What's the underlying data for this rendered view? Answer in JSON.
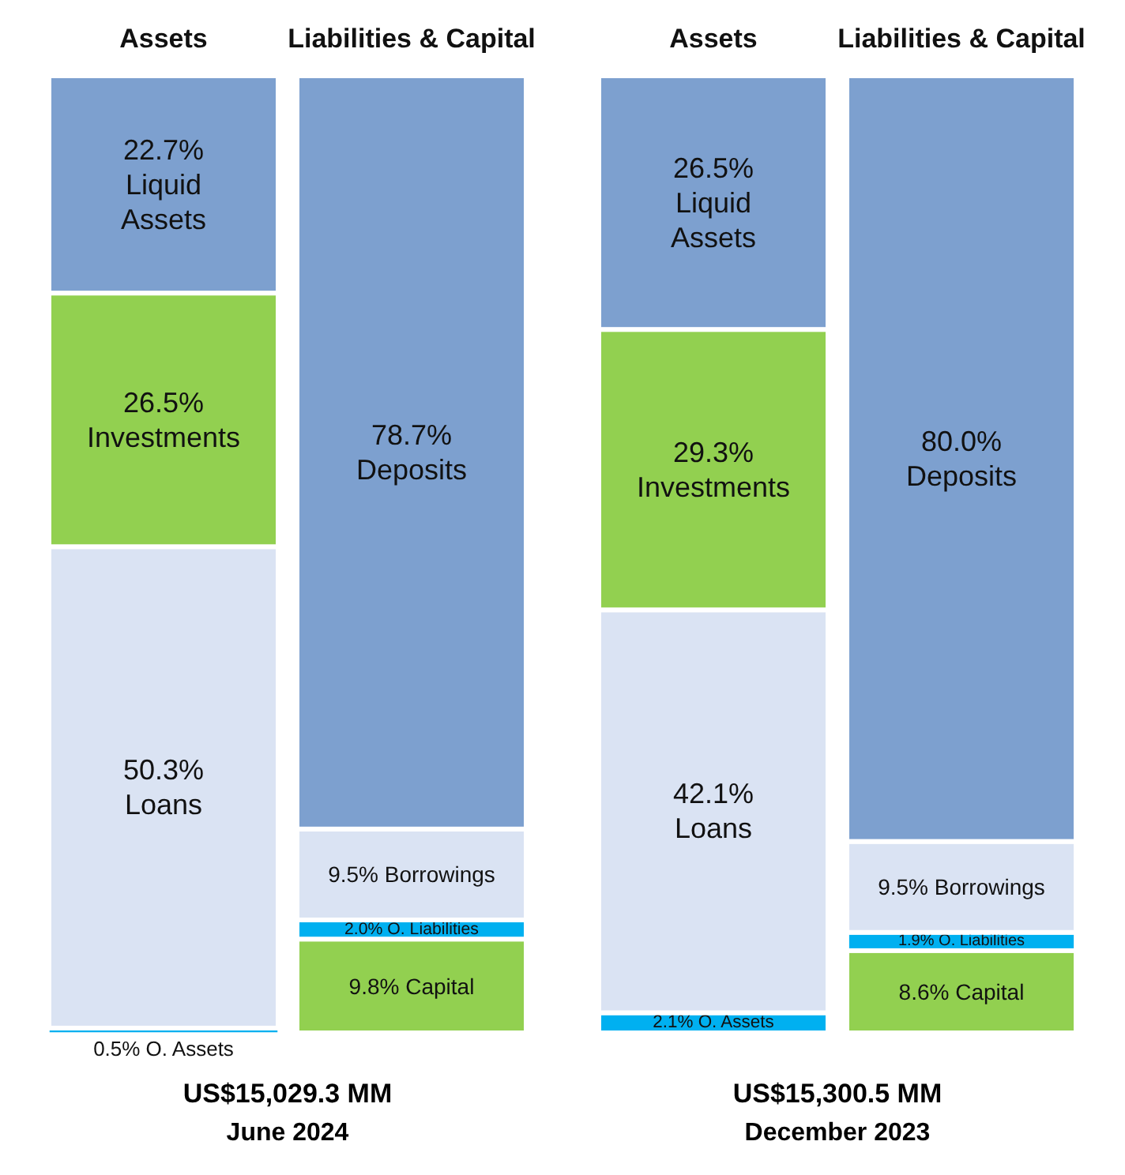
{
  "chart_data": [
    {
      "type": "bar",
      "stacked": true,
      "title": "US$15,029.3 MM",
      "subtitle": "June 2024",
      "categories": [
        "Assets",
        "Liabilities & Capital"
      ],
      "series": [
        {
          "name": "O. Assets",
          "color": "#00b0f0",
          "values": [
            0.5,
            null
          ],
          "value_labels": [
            "0.5%",
            null
          ]
        },
        {
          "name": "Loans",
          "color": "#dae3f3",
          "values": [
            50.3,
            null
          ],
          "value_labels": [
            "50.3%",
            null
          ]
        },
        {
          "name": "Investments",
          "color": "#92d050",
          "values": [
            26.5,
            null
          ],
          "value_labels": [
            "26.5%",
            null
          ]
        },
        {
          "name": "Liquid Assets",
          "color": "#7da0cf",
          "values": [
            22.7,
            null
          ],
          "value_labels": [
            "22.7%",
            null
          ]
        },
        {
          "name": "Capital",
          "color": "#92d050",
          "values": [
            null,
            9.8
          ],
          "value_labels": [
            null,
            "9.8%"
          ]
        },
        {
          "name": "O. Liabilities",
          "color": "#00b0f0",
          "values": [
            null,
            2.0
          ],
          "value_labels": [
            null,
            "2.0%"
          ]
        },
        {
          "name": "Borrowings",
          "color": "#dae3f3",
          "values": [
            null,
            9.5
          ],
          "value_labels": [
            null,
            "9.5%"
          ]
        },
        {
          "name": "Deposits",
          "color": "#7da0cf",
          "values": [
            null,
            78.7
          ],
          "value_labels": [
            null,
            "78.7%"
          ]
        }
      ]
    },
    {
      "type": "bar",
      "stacked": true,
      "title": "US$15,300.5 MM",
      "subtitle": "December 2023",
      "categories": [
        "Assets",
        "Liabilities & Capital"
      ],
      "series": [
        {
          "name": "O. Assets",
          "color": "#00b0f0",
          "values": [
            2.1,
            null
          ],
          "value_labels": [
            "2.1%",
            null
          ]
        },
        {
          "name": "Loans",
          "color": "#dae3f3",
          "values": [
            42.1,
            null
          ],
          "value_labels": [
            "42.1%",
            null
          ]
        },
        {
          "name": "Investments",
          "color": "#92d050",
          "values": [
            29.3,
            null
          ],
          "value_labels": [
            "29.3%",
            null
          ]
        },
        {
          "name": "Liquid Assets",
          "color": "#7da0cf",
          "values": [
            26.5,
            null
          ],
          "value_labels": [
            "26.5%",
            null
          ]
        },
        {
          "name": "Capital",
          "color": "#92d050",
          "values": [
            null,
            8.6
          ],
          "value_labels": [
            null,
            "8.6%"
          ]
        },
        {
          "name": "O. Liabilities",
          "color": "#00b0f0",
          "values": [
            null,
            1.9
          ],
          "value_labels": [
            null,
            "1.9%"
          ]
        },
        {
          "name": "Borrowings",
          "color": "#dae3f3",
          "values": [
            null,
            9.5
          ],
          "value_labels": [
            null,
            "9.5%"
          ]
        },
        {
          "name": "Deposits",
          "color": "#7da0cf",
          "values": [
            null,
            80.0
          ],
          "value_labels": [
            null,
            "80.0%"
          ]
        }
      ]
    }
  ]
}
